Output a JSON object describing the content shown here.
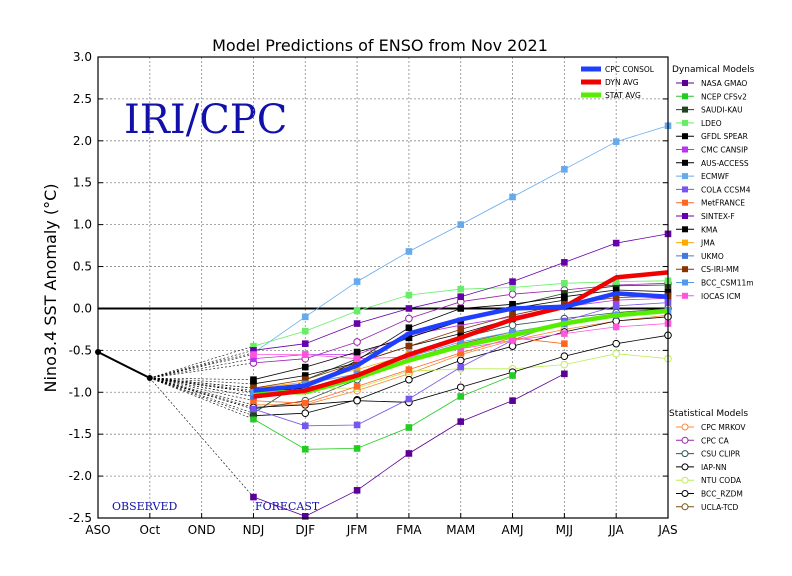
{
  "chart_data": {
    "type": "line",
    "title": "Model Predictions of ENSO from Nov 2021",
    "watermark": "IRI/CPC",
    "ylabel": "Nino3.4 SST Anomaly (°C)",
    "xlabel": "",
    "ylim": [
      -2.5,
      3.0
    ],
    "yticks": [
      "-2.5",
      "-2.0",
      "-1.5",
      "-1.0",
      "-0.5",
      "0.0",
      "0.5",
      "1.0",
      "1.5",
      "2.0",
      "2.5",
      "3.0"
    ],
    "categories": [
      "ASO",
      "Oct",
      "OND",
      "NDJ",
      "DJF",
      "JFM",
      "FMA",
      "MAM",
      "AMJ",
      "MJJ",
      "JJA",
      "JAS"
    ],
    "grid": true,
    "zero_line": true,
    "observed_label": "OBSERVED",
    "forecast_label": "FORECAST",
    "observed": {
      "x": [
        "ASO",
        "Oct"
      ],
      "values": [
        -0.52,
        -0.83
      ],
      "color": "#000000"
    },
    "legend_position": "right",
    "consensus_series": [
      {
        "name": "CPC CONSOL",
        "color": "#1f3fff",
        "values": [
          null,
          null,
          null,
          -0.98,
          -0.92,
          -0.68,
          -0.3,
          -0.13,
          0.0,
          0.02,
          0.18,
          0.14
        ]
      },
      {
        "name": "DYN AVG",
        "color": "#f00000",
        "values": [
          null,
          null,
          null,
          -1.05,
          -0.98,
          -0.8,
          -0.55,
          -0.35,
          -0.13,
          0.02,
          0.37,
          0.43
        ]
      },
      {
        "name": "STAT AVG",
        "color": "#55ee00",
        "values": [
          null,
          null,
          null,
          -1.0,
          -1.0,
          -0.83,
          -0.62,
          -0.45,
          -0.32,
          -0.18,
          -0.08,
          -0.03
        ]
      }
    ],
    "dynamical_title": "Dynamical Models",
    "dynamical_models": [
      {
        "name": "NASA GMAO",
        "color": "#5a0096",
        "values": [
          null,
          null,
          null,
          -2.25,
          -2.48,
          -2.17,
          -1.73,
          -1.35,
          -1.1,
          -0.78,
          null,
          null
        ]
      },
      {
        "name": "NCEP CFSv2",
        "color": "#22cc22",
        "values": [
          null,
          null,
          null,
          -1.32,
          -1.68,
          -1.67,
          -1.42,
          -1.05,
          -0.8,
          null,
          null,
          null
        ]
      },
      {
        "name": "SAUDI-KAU",
        "color": "#224422",
        "values": [
          null,
          null,
          null,
          -1.25,
          -0.85,
          -0.6,
          -0.35,
          -0.15,
          0.03,
          0.18,
          0.27,
          0.28
        ]
      },
      {
        "name": "LDEO",
        "color": "#66ee66",
        "values": [
          null,
          null,
          null,
          -0.45,
          -0.27,
          -0.03,
          0.16,
          0.23,
          0.25,
          0.3,
          0.32,
          0.33
        ]
      },
      {
        "name": "GFDL SPEAR",
        "color": "#000000",
        "values": [
          null,
          null,
          null,
          -1.0,
          -0.95,
          -0.62,
          -0.23,
          0.0,
          0.05,
          0.14,
          0.22,
          0.2
        ]
      },
      {
        "name": "CMC CANSIP",
        "color": "#bb33ee",
        "values": [
          null,
          null,
          null,
          -0.6,
          -0.55,
          -0.55,
          -0.32,
          -0.2,
          -0.1,
          0.02,
          0.1,
          0.12
        ]
      },
      {
        "name": "AUS-ACCESS",
        "color": "#000000",
        "values": [
          null,
          null,
          null,
          -0.85,
          -0.7,
          -0.52,
          -0.35,
          -0.15,
          0.0,
          0.1,
          null,
          null
        ]
      },
      {
        "name": "ECMWF",
        "color": "#66aaee",
        "values": [
          null,
          null,
          null,
          -0.53,
          -0.1,
          0.32,
          0.68,
          1.0,
          1.33,
          1.66,
          1.99,
          2.18
        ]
      },
      {
        "name": "COLA CCSM4",
        "color": "#7755ee",
        "values": [
          null,
          null,
          null,
          -1.2,
          -1.4,
          -1.39,
          -1.08,
          -0.7,
          -0.38,
          -0.15,
          0.03,
          0.07
        ]
      },
      {
        "name": "MetFRANCE",
        "color": "#ff6622",
        "values": [
          null,
          null,
          null,
          -1.1,
          -1.13,
          -0.93,
          -0.73,
          -0.53,
          -0.35,
          -0.42,
          null,
          null
        ]
      },
      {
        "name": "SINTEX-F",
        "color": "#6600aa",
        "values": [
          null,
          null,
          null,
          -0.5,
          -0.42,
          -0.18,
          0.0,
          0.14,
          0.32,
          0.55,
          0.78,
          0.89
        ]
      },
      {
        "name": "KMA",
        "color": "#000000",
        "values": [
          null,
          null,
          null,
          -0.9,
          -0.8,
          -0.65,
          -0.45,
          -0.3,
          -0.12,
          0.03,
          null,
          null
        ]
      },
      {
        "name": "JMA",
        "color": "#ffaa00",
        "values": [
          null,
          null,
          null,
          -0.95,
          -0.88,
          -0.73,
          -0.55,
          null,
          null,
          null,
          null,
          null
        ]
      },
      {
        "name": "UKMO",
        "color": "#4477dd",
        "values": [
          null,
          null,
          null,
          -1.05,
          -0.98,
          -0.78,
          -0.58,
          null,
          null,
          null,
          null,
          null
        ]
      },
      {
        "name": "CS-IRI-MM",
        "color": "#883300",
        "values": [
          null,
          null,
          null,
          -0.95,
          -0.85,
          -0.65,
          -0.45,
          -0.25,
          -0.08,
          0.05,
          0.13,
          0.15
        ]
      },
      {
        "name": "BCC_CSM11m",
        "color": "#5599ee",
        "values": [
          null,
          null,
          null,
          -1.0,
          -0.9,
          -0.78,
          -0.58,
          -0.4,
          -0.28,
          -0.18,
          -0.08,
          -0.02
        ]
      },
      {
        "name": "IOCAS ICM",
        "color": "#ff55dd",
        "values": [
          null,
          null,
          null,
          -0.55,
          -0.55,
          -0.6,
          -0.58,
          -0.48,
          -0.38,
          -0.3,
          -0.22,
          -0.18
        ]
      }
    ],
    "statistical_title": "Statistical Models",
    "statistical_models": [
      {
        "name": "CPC MRKOV",
        "color": "#ff8833",
        "values": [
          null,
          null,
          null,
          -1.15,
          -1.15,
          -0.98,
          -0.78,
          -0.55,
          -0.38,
          -0.25,
          -0.15,
          -0.08
        ]
      },
      {
        "name": "CPC CA",
        "color": "#9922aa",
        "values": [
          null,
          null,
          null,
          -0.65,
          -0.6,
          -0.4,
          -0.12,
          0.08,
          0.17,
          0.22,
          0.28,
          0.3
        ]
      },
      {
        "name": "CSU CLIPR",
        "color": "#335555",
        "values": [
          null,
          null,
          null,
          -1.2,
          -1.1,
          -0.85,
          -0.55,
          -0.35,
          -0.2,
          -0.12,
          -0.05,
          0.0
        ]
      },
      {
        "name": "IAP-NN",
        "color": "#000000",
        "values": [
          null,
          null,
          null,
          -1.28,
          -1.25,
          -1.09,
          -0.85,
          -0.62,
          -0.45,
          -0.28,
          -0.15,
          -0.1
        ]
      },
      {
        "name": "NTU CODA",
        "color": "#bbee55",
        "values": [
          null,
          null,
          null,
          -0.95,
          -0.95,
          -0.95,
          -0.75,
          -0.72,
          -0.72,
          -0.67,
          -0.54,
          -0.6
        ]
      },
      {
        "name": "BCC_RZDM",
        "color": "#000000",
        "values": [
          null,
          null,
          null,
          -1.18,
          -1.15,
          -1.1,
          -1.12,
          -0.94,
          -0.76,
          -0.57,
          -0.42,
          -0.32
        ]
      },
      {
        "name": "UCLA-TCD",
        "color": "#775511",
        "values": [
          null,
          null,
          null,
          -1.0,
          -0.95,
          -0.8,
          -0.6,
          -0.42,
          -0.28,
          -0.18,
          -0.08,
          0.0
        ]
      }
    ]
  }
}
